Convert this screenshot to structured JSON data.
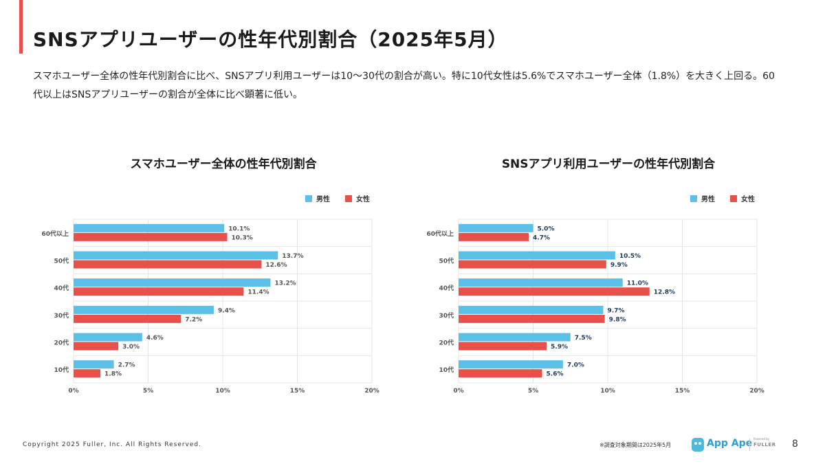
{
  "slide": {
    "title": "SNSアプリユーザーの性年代別割合（2025年5月）",
    "summary": "スマホユーザー全体の性年代別割合に比べ、SNSアプリ利用ユーザーは10〜30代の割合が高い。特に10代女性は5.6%でスマホユーザー全体（1.8%）を大きく上回る。60代以上はSNSアプリユーザーの割合が全体に比べ顕著に低い。",
    "page_number": "8"
  },
  "footer": {
    "copyright": "Copyright 2025 Fuller, Inc. All Rights Reserved.",
    "note": "※調査対象期間は2025年5月",
    "logo_text": "App Ape",
    "logo_powered": "Powered by",
    "logo_brand": "FULLER"
  },
  "colors": {
    "male": "#5bc0e8",
    "female": "#e8504a",
    "accent": "#e8504a",
    "grid": "#e4e4e4",
    "axis_text": "#555555",
    "label_text_left": "#555555",
    "label_text_right": "#1f3a5a"
  },
  "chart_data": [
    {
      "type": "bar",
      "orientation": "horizontal",
      "title": "スマホユーザー全体の性年代別割合",
      "categories": [
        "60代以上",
        "50代",
        "40代",
        "30代",
        "20代",
        "10代"
      ],
      "series": [
        {
          "name": "男性",
          "values": [
            10.1,
            13.7,
            13.2,
            9.4,
            4.6,
            2.7
          ],
          "labels": [
            "10.1%",
            "13.7%",
            "13.2%",
            "9.4%",
            "4.6%",
            "2.7%"
          ]
        },
        {
          "name": "女性",
          "values": [
            10.3,
            12.6,
            11.4,
            7.2,
            3.0,
            1.8
          ],
          "labels": [
            "10.3%",
            "12.6%",
            "11.4%",
            "7.2%",
            "3.0%",
            "1.8%"
          ]
        }
      ],
      "xlim": [
        0,
        20
      ],
      "xticks": [
        0,
        5,
        10,
        15,
        20
      ],
      "xtick_labels": [
        "0%",
        "5%",
        "10%",
        "15%",
        "20%"
      ],
      "grid": true,
      "legend": "top-right"
    },
    {
      "type": "bar",
      "orientation": "horizontal",
      "title": "SNSアプリ利用ユーザーの性年代別割合",
      "categories": [
        "60代以上",
        "50代",
        "40代",
        "30代",
        "20代",
        "10代"
      ],
      "series": [
        {
          "name": "男性",
          "values": [
            5.0,
            10.5,
            11.0,
            9.7,
            7.5,
            7.0
          ],
          "labels": [
            "5.0%",
            "10.5%",
            "11.0%",
            "9.7%",
            "7.5%",
            "7.0%"
          ]
        },
        {
          "name": "女性",
          "values": [
            4.7,
            9.9,
            12.8,
            9.8,
            5.9,
            5.6
          ],
          "labels": [
            "4.7%",
            "9.9%",
            "12.8%",
            "9.8%",
            "5.9%",
            "5.6%"
          ]
        }
      ],
      "xlim": [
        0,
        20
      ],
      "xticks": [
        0,
        5,
        10,
        15,
        20
      ],
      "xtick_labels": [
        "0%",
        "5%",
        "10%",
        "15%",
        "20%"
      ],
      "grid": true,
      "legend": "top-right"
    }
  ]
}
